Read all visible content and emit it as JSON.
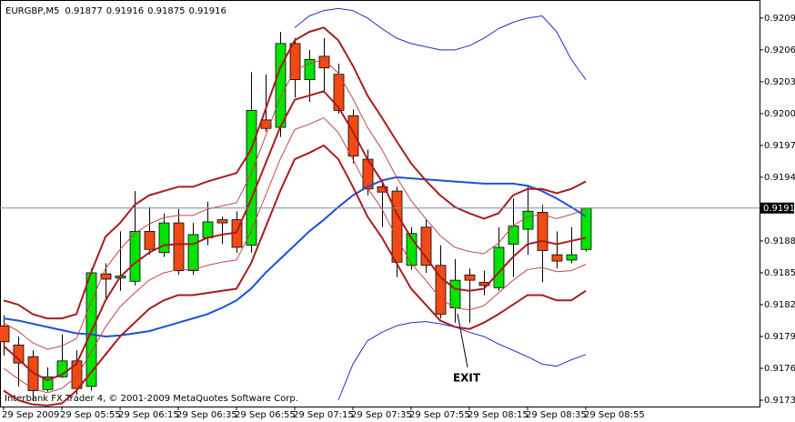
{
  "chart_data": {
    "type": "candlestick",
    "symbol": "EURGBP,M5",
    "categories": [
      "29 Sep 2009",
      null,
      null,
      null,
      "29 Sep 05:55",
      null,
      null,
      null,
      "29 Sep 06:15",
      null,
      null,
      null,
      "29 Sep 06:35",
      null,
      null,
      null,
      "29 Sep 06:55",
      null,
      null,
      null,
      "29 Sep 07:15",
      null,
      null,
      null,
      "29 Sep 07:35",
      null,
      null,
      null,
      "29 Sep 07:55",
      null,
      null,
      null,
      "29 Sep 08:15",
      null,
      null,
      null,
      "29 Sep 08:35",
      null,
      null,
      null,
      "29 Sep 08:55"
    ],
    "open": [
      0.91805,
      0.91787,
      0.91776,
      0.91745,
      0.91757,
      0.91772,
      0.91748,
      0.91854,
      0.9185,
      0.91847,
      0.91894,
      0.91874,
      0.91902,
      0.91857,
      0.91888,
      0.91905,
      0.91905,
      0.91881,
      0.91999,
      0.91992,
      0.92071,
      0.92037,
      0.92059,
      0.92042,
      0.92003,
      0.91962,
      0.91936,
      0.91932,
      0.91862,
      0.91898,
      0.91862,
      0.91822,
      0.91853,
      0.91846,
      0.91841,
      0.91882,
      0.91896,
      0.91912,
      0.91872,
      0.91867,
      0.91877
    ],
    "high": [
      0.91815,
      0.91795,
      0.91782,
      0.91766,
      0.91797,
      0.91782,
      0.91859,
      0.91864,
      0.91894,
      0.91932,
      0.91917,
      0.91911,
      0.91915,
      0.91902,
      0.91922,
      0.91908,
      0.91913,
      0.92044,
      0.92042,
      0.92082,
      0.92076,
      0.92065,
      0.92076,
      0.92052,
      0.92009,
      0.91971,
      0.91943,
      0.91936,
      0.91898,
      0.91905,
      0.91881,
      0.91868,
      0.91859,
      0.91857,
      0.91898,
      0.91925,
      0.91936,
      0.91919,
      0.91894,
      0.91898,
      0.91916
    ],
    "low": [
      0.91777,
      0.91748,
      0.91735,
      0.91743,
      0.91756,
      0.9174,
      0.91744,
      0.9183,
      0.91838,
      0.91843,
      0.91872,
      0.9187,
      0.91853,
      0.91853,
      0.91881,
      0.91882,
      0.91874,
      0.91874,
      0.91988,
      0.91983,
      0.9202,
      0.92016,
      0.92026,
      0.92005,
      0.91958,
      0.91928,
      0.91898,
      0.91851,
      0.91858,
      0.91855,
      0.91812,
      0.91808,
      0.91808,
      0.91834,
      0.91838,
      0.91851,
      0.91872,
      0.91846,
      0.91859,
      0.91864,
      0.91875
    ],
    "close": [
      0.9179,
      0.9177,
      0.91744,
      0.91757,
      0.91772,
      0.91746,
      0.91855,
      0.91849,
      0.91852,
      0.91894,
      0.91877,
      0.91902,
      0.91857,
      0.91891,
      0.91903,
      0.91902,
      0.91879,
      0.92008,
      0.91991,
      0.92071,
      0.92037,
      0.92056,
      0.92048,
      0.92008,
      0.91965,
      0.91934,
      0.91931,
      0.91865,
      0.91892,
      0.91862,
      0.91816,
      0.91848,
      0.91848,
      0.91843,
      0.91879,
      0.91899,
      0.91913,
      0.91876,
      0.91866,
      0.91872,
      0.91916
    ],
    "up_color": "#00e400",
    "down_color": "#f24a14",
    "lines": [
      {
        "color": "#1f4fd6",
        "values": [
          0.91812,
          0.9181,
          0.91807,
          0.91804,
          0.91801,
          0.91798,
          0.91797,
          0.91795,
          0.91796,
          0.91798,
          0.918,
          0.91804,
          0.91808,
          0.91812,
          0.91816,
          0.91822,
          0.91829,
          0.9184,
          0.91855,
          0.91868,
          0.91881,
          0.91894,
          0.91905,
          0.91917,
          0.91928,
          0.91936,
          0.91942,
          0.91945,
          0.91944,
          0.91943,
          0.91942,
          0.91941,
          0.9194,
          0.91939,
          0.91939,
          0.91939,
          0.91937,
          0.91932,
          0.91925,
          0.91917,
          0.91908
        ]
      },
      {
        "color": "#2030c0",
        "values": [
          null,
          null,
          null,
          null,
          null,
          null,
          null,
          null,
          null,
          null,
          null,
          null,
          null,
          null,
          null,
          null,
          null,
          null,
          null,
          null,
          0.92086,
          0.92097,
          0.92102,
          0.92104,
          0.92102,
          0.92095,
          0.92085,
          0.92076,
          0.92071,
          0.92068,
          0.92065,
          0.92065,
          0.92069,
          0.92076,
          0.92085,
          0.92091,
          0.92095,
          0.92097,
          0.92082,
          0.92056,
          0.92037
        ]
      },
      {
        "color": "#2030c0",
        "values": [
          null,
          null,
          null,
          null,
          null,
          null,
          null,
          null,
          null,
          null,
          null,
          null,
          null,
          null,
          null,
          null,
          null,
          null,
          null,
          null,
          null,
          null,
          null,
          0.91735,
          0.91769,
          0.91791,
          0.91799,
          0.91805,
          0.91808,
          0.91809,
          0.91807,
          0.91804,
          0.91799,
          0.91795,
          0.91788,
          0.91782,
          0.91776,
          0.91769,
          0.91767,
          0.91773,
          0.91778
        ]
      },
      {
        "color": "#a81c1c",
        "values": [
          0.91786,
          0.91774,
          0.91761,
          0.91754,
          0.91759,
          0.91769,
          0.91799,
          0.91829,
          0.91851,
          0.91864,
          0.91874,
          0.91881,
          0.91882,
          0.91882,
          0.91888,
          0.91891,
          0.91893,
          0.91924,
          0.91958,
          0.91992,
          0.92018,
          0.92022,
          0.92026,
          0.92011,
          0.91988,
          0.91962,
          0.91941,
          0.91911,
          0.91888,
          0.9187,
          0.91851,
          0.9184,
          0.91838,
          0.9184,
          0.91855,
          0.9187,
          0.91882,
          0.91885,
          0.91882,
          0.91885,
          0.91888
        ]
      },
      {
        "color": "#a81c1c",
        "values": [
          0.91829,
          0.91825,
          0.91816,
          0.91812,
          0.91812,
          0.91816,
          0.91855,
          0.91889,
          0.91902,
          0.91919,
          0.91928,
          0.91932,
          0.91936,
          0.91936,
          0.91941,
          0.91945,
          0.91949,
          0.91971,
          0.92009,
          0.92048,
          0.92074,
          0.92082,
          0.92086,
          0.92074,
          0.9205,
          0.92022,
          0.92001,
          0.91979,
          0.91958,
          0.91942,
          0.91928,
          0.91917,
          0.91911,
          0.91906,
          0.91911,
          0.91928,
          0.91934,
          0.91934,
          0.9193,
          0.91934,
          0.91941
        ]
      },
      {
        "color": "#a81c1c",
        "values": [
          0.91744,
          0.91735,
          0.91731,
          0.9173,
          0.91732,
          0.91744,
          0.91761,
          0.91778,
          0.91795,
          0.91808,
          0.91821,
          0.91829,
          0.91834,
          0.91834,
          0.91836,
          0.91838,
          0.9184,
          0.91864,
          0.91898,
          0.91932,
          0.91962,
          0.91968,
          0.91975,
          0.91962,
          0.91936,
          0.91908,
          0.91888,
          0.91864,
          0.9184,
          0.91825,
          0.9181,
          0.91804,
          0.91802,
          0.91808,
          0.91816,
          0.91825,
          0.91834,
          0.91834,
          0.91829,
          0.91829,
          0.91838
        ]
      },
      {
        "color": "#c04848",
        "values": [
          0.91808,
          0.918,
          0.91789,
          0.91783,
          0.91786,
          0.91793,
          0.91827,
          0.91859,
          0.91877,
          0.91892,
          0.91901,
          0.91907,
          0.91909,
          0.91909,
          0.91915,
          0.91918,
          0.91921,
          0.91948,
          0.91984,
          0.9202,
          0.92046,
          0.92052,
          0.92056,
          0.92043,
          0.92019,
          0.91992,
          0.91971,
          0.91945,
          0.91923,
          0.91906,
          0.9189,
          0.91879,
          0.91875,
          0.91873,
          0.91883,
          0.91899,
          0.91908,
          0.9191,
          0.91906,
          0.9191,
          0.91915
        ]
      },
      {
        "color": "#c04848",
        "values": [
          0.91765,
          0.91755,
          0.91746,
          0.91742,
          0.91746,
          0.91757,
          0.9178,
          0.91804,
          0.91823,
          0.91836,
          0.91848,
          0.91855,
          0.91858,
          0.91858,
          0.91862,
          0.91865,
          0.91867,
          0.91894,
          0.91928,
          0.91962,
          0.9199,
          0.91995,
          0.92001,
          0.91987,
          0.91962,
          0.91935,
          0.91915,
          0.91888,
          0.91864,
          0.91848,
          0.91831,
          0.91822,
          0.9182,
          0.91824,
          0.91836,
          0.91848,
          0.91858,
          0.9186,
          0.91856,
          0.91857,
          0.91863
        ]
      }
    ],
    "ylim": [
      0.91729,
      0.92112
    ],
    "yticks": [
      0.92095,
      0.92065,
      0.92035,
      0.92005,
      0.91975,
      0.91945,
      0.91885,
      0.91855,
      0.91825,
      0.91795,
      0.91765,
      0.91735
    ],
    "annotation": "EXIT",
    "footer": "Interbank FX Trader 4, © 2001-2009 MetaQuotes Software Corp."
  }
}
